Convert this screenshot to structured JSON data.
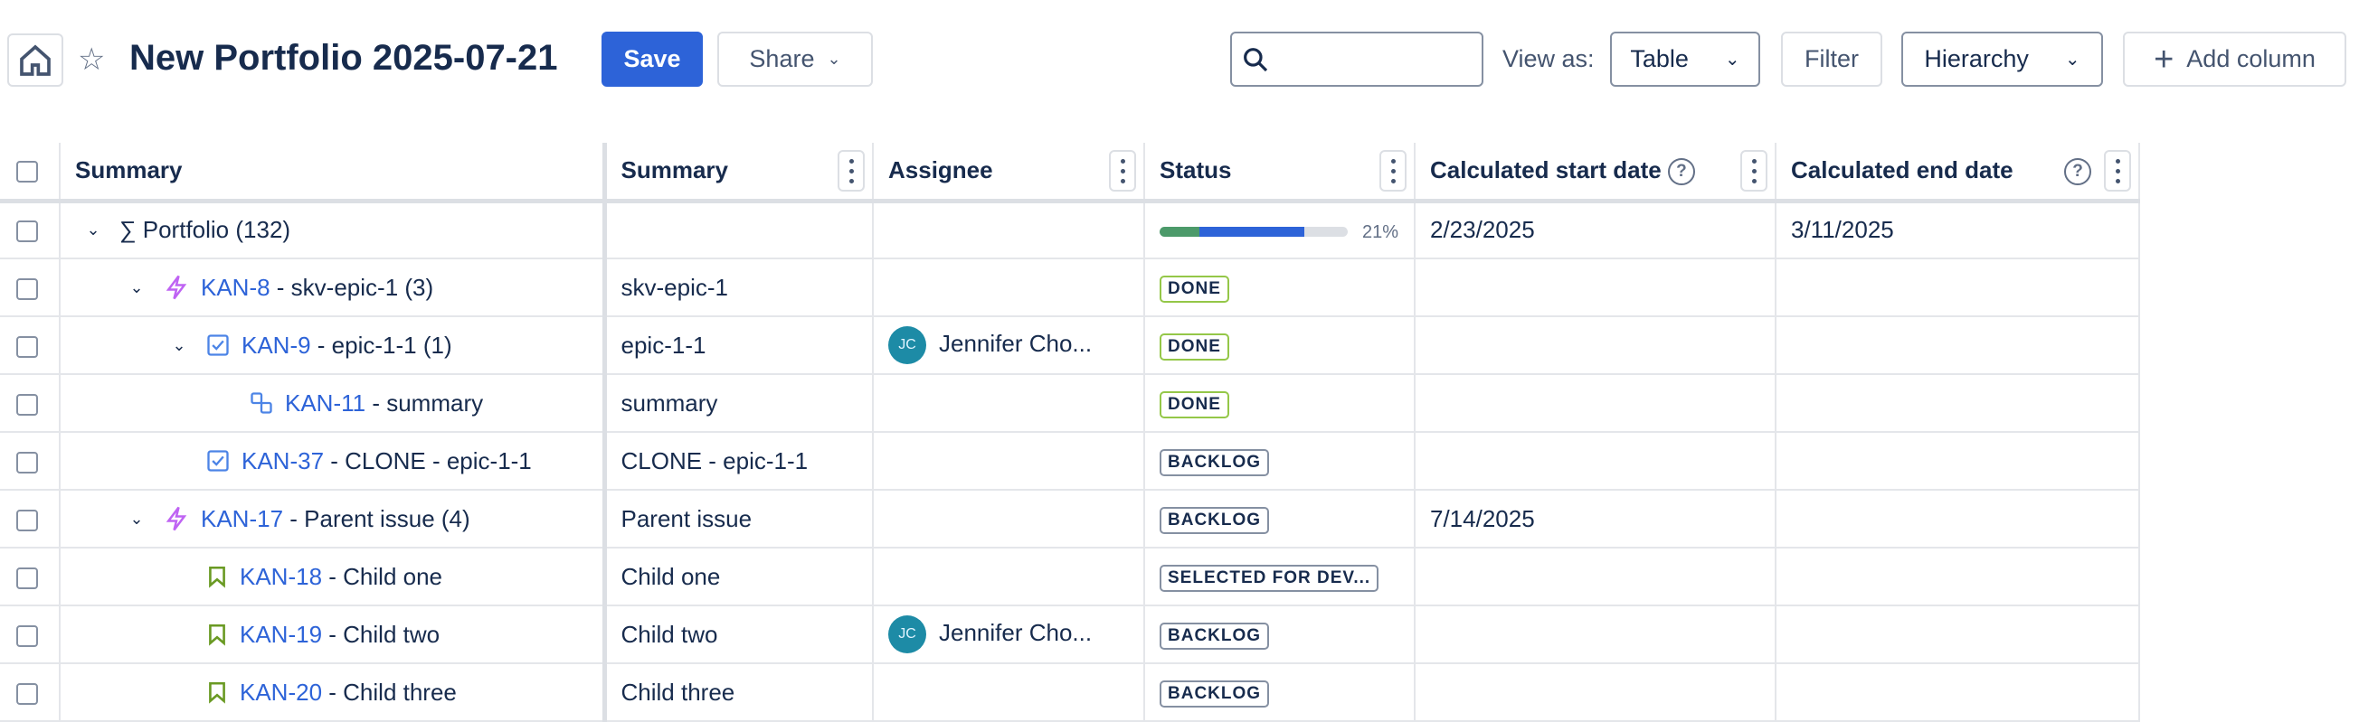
{
  "header": {
    "title": "New Portfolio 2025-07-21",
    "save_label": "Save",
    "share_label": "Share",
    "search_placeholder": "",
    "view_as_label": "View as:",
    "view_as_value": "Table",
    "filter_label": "Filter",
    "hierarchy_value": "Hierarchy",
    "add_column_label": "Add column"
  },
  "columns": [
    "Summary",
    "Summary",
    "Assignee",
    "Status",
    "Calculated start date",
    "Calculated end date"
  ],
  "rows": [
    {
      "level": 0,
      "expanded": true,
      "icon": "sigma",
      "key": "",
      "title": "∑ Portfolio (132)",
      "summary": "",
      "assignee": "",
      "status": "",
      "progress": {
        "done": 21,
        "in_progress": 56,
        "label": "21%"
      },
      "start": "2/23/2025",
      "end": "3/11/2025"
    },
    {
      "level": 1,
      "expanded": true,
      "icon": "epic-icon",
      "key": "KAN-8",
      "title": " - skv-epic-1 (3)",
      "summary": "skv-epic-1",
      "assignee": "",
      "status": "DONE",
      "start": "",
      "end": ""
    },
    {
      "level": 2,
      "expanded": true,
      "icon": "task-icon",
      "key": "KAN-9",
      "title": " - epic-1-1 (1)",
      "summary": "epic-1-1",
      "assignee": "Jennifer Cho...",
      "initials": "JC",
      "status": "DONE",
      "start": "",
      "end": ""
    },
    {
      "level": 3,
      "icon": "subtask-icon",
      "key": "KAN-11",
      "title": " - summary",
      "summary": "summary",
      "assignee": "",
      "status": "DONE",
      "start": "",
      "end": ""
    },
    {
      "level": 2,
      "icon": "task-icon",
      "key": "KAN-37",
      "title": " - CLONE - epic-1-1",
      "summary": "CLONE - epic-1-1",
      "assignee": "",
      "status": "BACKLOG",
      "start": "",
      "end": ""
    },
    {
      "level": 1,
      "expanded": true,
      "icon": "epic-icon",
      "key": "KAN-17",
      "title": " - Parent issue (4)",
      "summary": "Parent issue",
      "assignee": "",
      "status": "BACKLOG",
      "start": "7/14/2025",
      "end": ""
    },
    {
      "level": 2,
      "icon": "story-icon",
      "key": "KAN-18",
      "title": " - Child one",
      "summary": "Child one",
      "assignee": "",
      "status": "SELECTED FOR DEV...",
      "start": "",
      "end": ""
    },
    {
      "level": 2,
      "icon": "story-icon",
      "key": "KAN-19",
      "title": " - Child two",
      "summary": "Child two",
      "assignee": "Jennifer Cho...",
      "initials": "JC",
      "status": "BACKLOG",
      "start": "",
      "end": ""
    },
    {
      "level": 2,
      "icon": "story-icon",
      "key": "KAN-20",
      "title": " - Child three",
      "summary": "Child three",
      "assignee": "",
      "status": "BACKLOG",
      "start": "",
      "end": ""
    }
  ],
  "colors": {
    "accent": "#2d63d8",
    "done_border": "#94c748",
    "progress_done": "#4c9a6a",
    "progress_in_progress": "#2d63d8",
    "epic": "#bf63f3",
    "story": "#6a9a23"
  }
}
